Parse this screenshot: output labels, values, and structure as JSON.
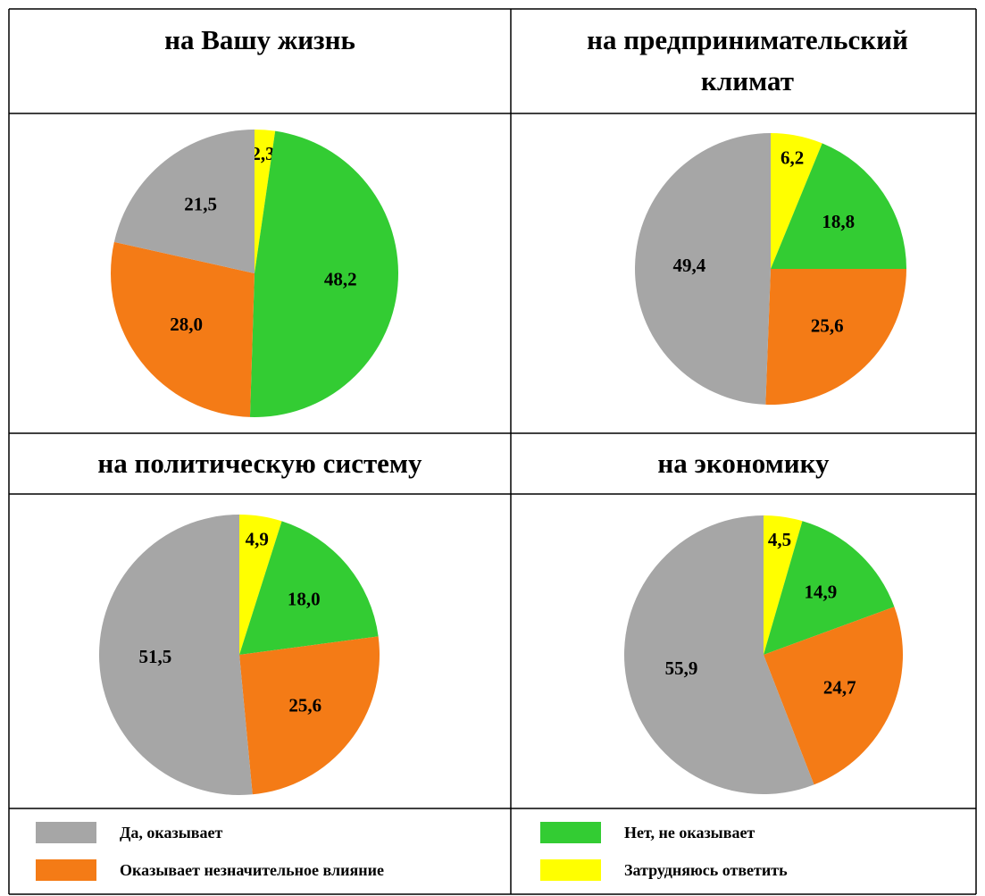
{
  "chart_data": [
    {
      "type": "pie",
      "title": "на Вашу жизнь",
      "categories": [
        "Затрудняюсь ответить",
        "Нет, не оказывает",
        "Оказывает незначительное влияние",
        "Да, оказывает"
      ],
      "values": [
        2.3,
        48.2,
        28.0,
        21.5
      ],
      "value_labels": [
        "2,3",
        "48,2",
        "28,0",
        "21,5"
      ],
      "colors": [
        "#ffff00",
        "#33cc33",
        "#f47b16",
        "#a6a6a6"
      ]
    },
    {
      "type": "pie",
      "title": "на предпринимательский климат",
      "categories": [
        "Затрудняюсь ответить",
        "Нет, не оказывает",
        "Оказывает незначительное влияние",
        "Да, оказывает"
      ],
      "values": [
        6.2,
        18.8,
        25.6,
        49.4
      ],
      "value_labels": [
        "6,2",
        "18,8",
        "25,6",
        "49,4"
      ],
      "colors": [
        "#ffff00",
        "#33cc33",
        "#f47b16",
        "#a6a6a6"
      ]
    },
    {
      "type": "pie",
      "title": "на политическую систему",
      "categories": [
        "Затрудняюсь ответить",
        "Нет, не оказывает",
        "Оказывает незначительное влияние",
        "Да, оказывает"
      ],
      "values": [
        4.9,
        18.0,
        25.6,
        51.5
      ],
      "value_labels": [
        "4,9",
        "18,0",
        "25,6",
        "51,5"
      ],
      "colors": [
        "#ffff00",
        "#33cc33",
        "#f47b16",
        "#a6a6a6"
      ]
    },
    {
      "type": "pie",
      "title": "на экономику",
      "categories": [
        "Затрудняюсь ответить",
        "Нет, не оказывает",
        "Оказывает незначительное влияние",
        "Да, оказывает"
      ],
      "values": [
        4.5,
        14.9,
        24.7,
        55.9
      ],
      "value_labels": [
        "4,5",
        "14,9",
        "24,7",
        "55,9"
      ],
      "colors": [
        "#ffff00",
        "#33cc33",
        "#f47b16",
        "#a6a6a6"
      ]
    }
  ]
}
